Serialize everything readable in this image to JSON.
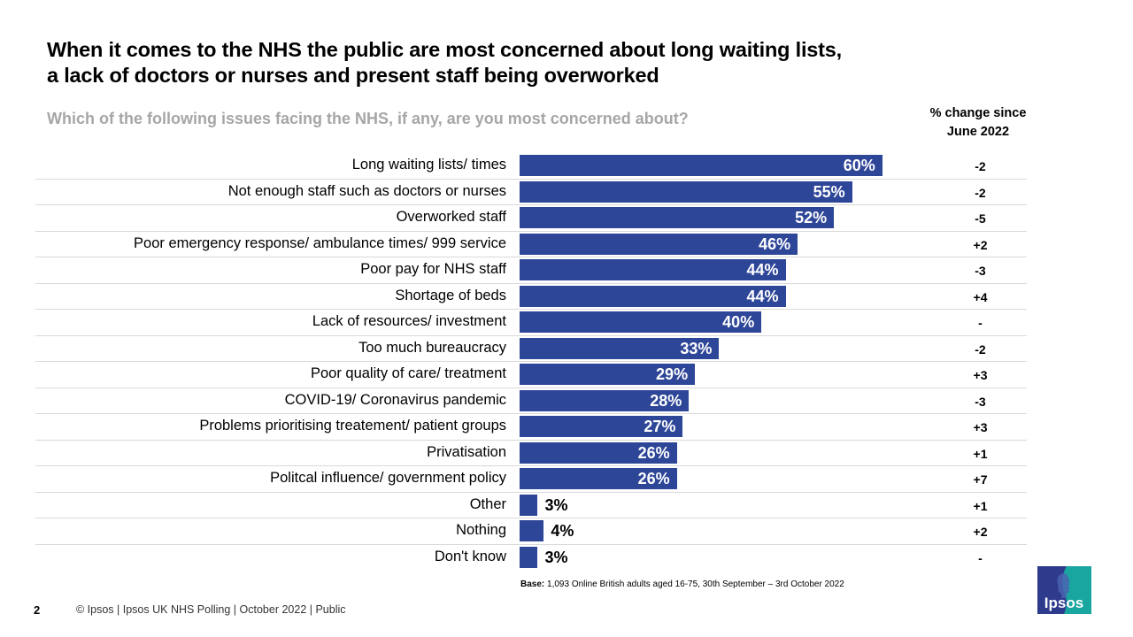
{
  "slide": {
    "title_line1": "When it comes to the NHS the public are most concerned about long waiting lists,",
    "title_line2": "a lack of doctors or nurses and present staff being overworked",
    "subtitle": "Which of the following  issues facing the NHS, if any, are you most concerned about?",
    "change_header_line1": "% change since",
    "change_header_line2": "June 2022",
    "base_label": "Base:",
    "base_text": " 1,093 Online British adults aged 16-75, 30th September – 3rd October 2022",
    "page_number": "2",
    "footer": "© Ipsos | Ipsos UK NHS Polling | October 2022 | Public",
    "logo_text": "Ipsos",
    "colors": {
      "bar": "#2e4698",
      "subtitle": "#a6a6a6",
      "logo_left": "#2e3a8c",
      "logo_right": "#19a6a0"
    }
  },
  "chart_data": {
    "type": "bar",
    "orientation": "horizontal",
    "title": "When it comes to the NHS the public are most concerned about long waiting lists, a lack of doctors or nurses and present staff being overworked",
    "subtitle": "Which of the following  issues facing the NHS, if any, are you most concerned about?",
    "xlabel": "",
    "ylabel": "",
    "xlim": [
      0,
      100
    ],
    "grid": false,
    "unit": "%",
    "categories": [
      "Long waiting lists/ times",
      "Not enough staff such as doctors or nurses",
      "Overworked staff",
      "Poor emergency response/ ambulance times/ 999 service",
      "Poor pay for NHS staff",
      "Shortage of beds",
      "Lack of resources/ investment",
      "Too much bureaucracy",
      "Poor quality of care/ treatment",
      "COVID-19/ Coronavirus pandemic",
      "Problems prioritising treatement/ patient groups",
      "Privatisation",
      "Politcal influence/ government policy",
      "Other",
      "Nothing",
      "Don't know"
    ],
    "values": [
      60,
      55,
      52,
      46,
      44,
      44,
      40,
      33,
      29,
      28,
      27,
      26,
      26,
      3,
      4,
      3
    ],
    "value_labels": [
      "60%",
      "55%",
      "52%",
      "46%",
      "44%",
      "44%",
      "40%",
      "33%",
      "29%",
      "28%",
      "27%",
      "26%",
      "26%",
      "3%",
      "4%",
      "3%"
    ],
    "change_since_june_2022": [
      "-2",
      "-2",
      "-5",
      "+2",
      "-3",
      "+4",
      "-",
      "-2",
      "+3",
      "-3",
      "+3",
      "+1",
      "+7",
      "+1",
      "+2",
      "-"
    ]
  }
}
